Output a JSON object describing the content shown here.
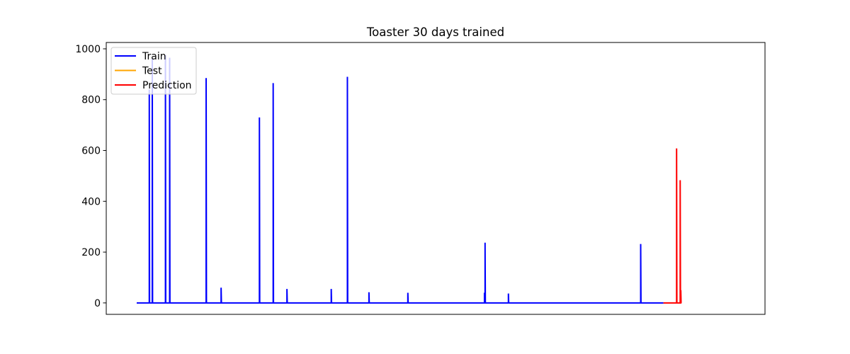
{
  "chart_data": {
    "type": "line",
    "title": "Toaster 30 days trained",
    "xlabel": "",
    "ylabel": "",
    "xlim": [
      0,
      1000
    ],
    "ylim": [
      -45,
      1025
    ],
    "yticks": [
      0,
      200,
      400,
      600,
      800,
      1000
    ],
    "show_xticks": false,
    "grid": false,
    "legend_position": "top-left",
    "series": [
      {
        "name": "Train",
        "color": "#0000ff",
        "points": [
          [
            0,
            0
          ],
          [
            21,
            0
          ],
          [
            21,
            840
          ],
          [
            21.5,
            0
          ],
          [
            26,
            0
          ],
          [
            26,
            960
          ],
          [
            26.5,
            0
          ],
          [
            48,
            0
          ],
          [
            48,
            975
          ],
          [
            48.5,
            0
          ],
          [
            55,
            0
          ],
          [
            55,
            965
          ],
          [
            55.5,
            0
          ],
          [
            116,
            0
          ],
          [
            116,
            885
          ],
          [
            116.5,
            0
          ],
          [
            141,
            0
          ],
          [
            141,
            60
          ],
          [
            141.5,
            0
          ],
          [
            205,
            0
          ],
          [
            205,
            730
          ],
          [
            205.5,
            0
          ],
          [
            228,
            0
          ],
          [
            228,
            865
          ],
          [
            228.5,
            0
          ],
          [
            251,
            0
          ],
          [
            251,
            55
          ],
          [
            251.5,
            0
          ],
          [
            325,
            0
          ],
          [
            325,
            55
          ],
          [
            325.5,
            0
          ],
          [
            352,
            0
          ],
          [
            352,
            890
          ],
          [
            352.5,
            0
          ],
          [
            388,
            0
          ],
          [
            388,
            42
          ],
          [
            388.5,
            0
          ],
          [
            453,
            0
          ],
          [
            453,
            40
          ],
          [
            453.5,
            0
          ],
          [
            581,
            0
          ],
          [
            581,
            40
          ],
          [
            581.3,
            0
          ],
          [
            582,
            0
          ],
          [
            582,
            237
          ],
          [
            582.5,
            0
          ],
          [
            621,
            0
          ],
          [
            621,
            37
          ],
          [
            621.5,
            0
          ],
          [
            842,
            0
          ],
          [
            842,
            232
          ],
          [
            842.5,
            0
          ],
          [
            880,
            0
          ]
        ]
      },
      {
        "name": "Test",
        "color": "#ffa500",
        "points": []
      },
      {
        "name": "Prediction",
        "color": "#ff0000",
        "points": [
          [
            880,
            0
          ],
          [
            902,
            0
          ],
          [
            902,
            608
          ],
          [
            902.5,
            0
          ],
          [
            908,
            0
          ],
          [
            908,
            483
          ],
          [
            908.5,
            0
          ],
          [
            909,
            0
          ],
          [
            909,
            50
          ],
          [
            909.5,
            0
          ],
          [
            910,
            0
          ]
        ]
      }
    ]
  }
}
